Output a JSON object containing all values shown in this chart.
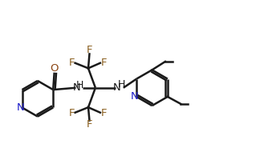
{
  "bg_color": "#ffffff",
  "line_color": "#1a1a1a",
  "n_color": "#2020cc",
  "o_color": "#8B4513",
  "f_color": "#8B6020",
  "bond_lw": 1.8,
  "font_size": 9.5,
  "fig_width": 3.29,
  "fig_height": 1.9,
  "xlim": [
    0,
    11
  ],
  "ylim": [
    0,
    6.3
  ]
}
